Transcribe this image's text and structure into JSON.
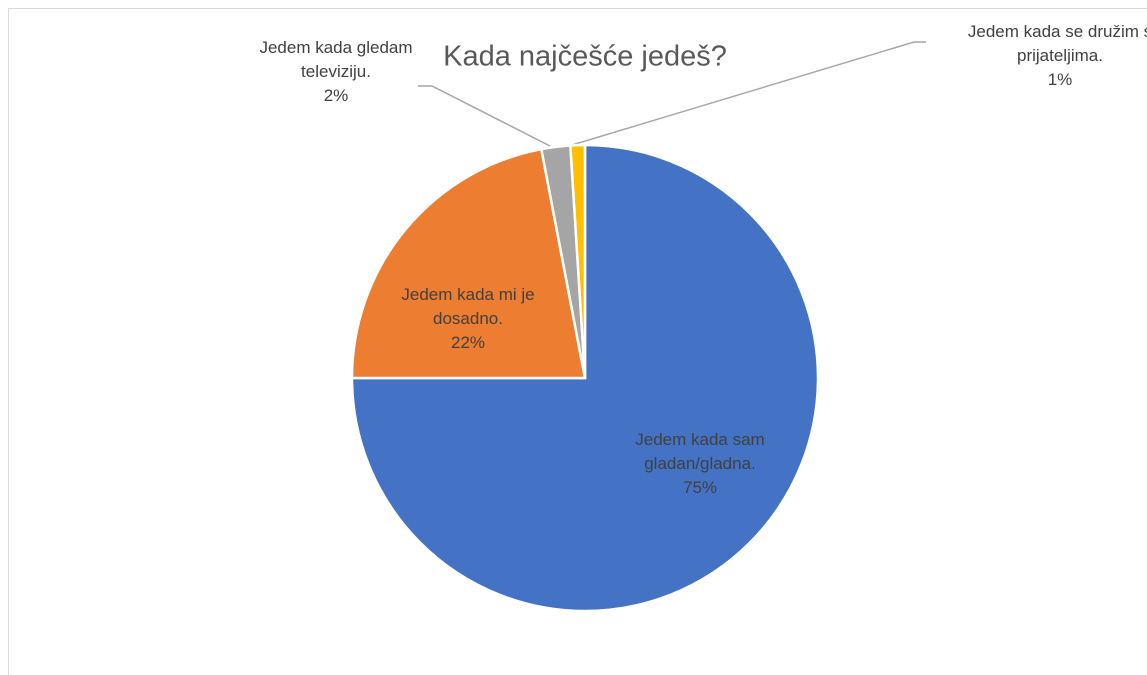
{
  "chart_data": {
    "type": "pie",
    "title": "Kada najčešće jedeš?",
    "categories": [
      "Jedem kada sam gladan/gladna.",
      "Jedem kada mi je dosadno.",
      "Jedem kada gledam televiziju.",
      "Jedem kada se družim s prijateljima."
    ],
    "values": [
      75,
      22,
      2,
      1
    ],
    "value_labels": [
      "75%",
      "22%",
      "2%",
      "1%"
    ],
    "colors": [
      "#4472c4",
      "#ed7d31",
      "#a5a5a5",
      "#ffc000"
    ]
  }
}
